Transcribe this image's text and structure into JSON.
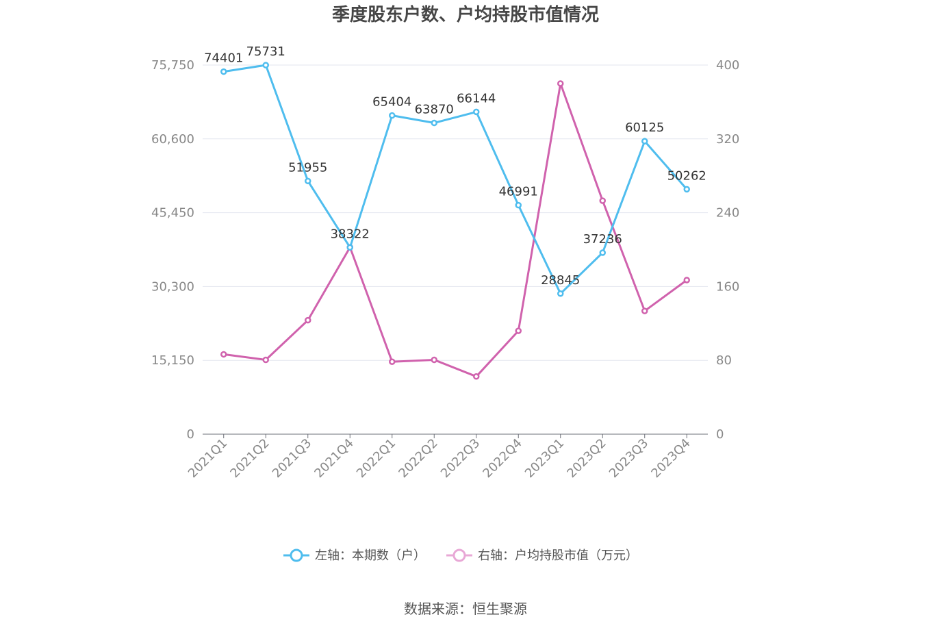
{
  "chart_data": {
    "type": "line",
    "title": "季度股东户数、户均持股市值情况",
    "categories": [
      "2021Q1",
      "2021Q2",
      "2021Q3",
      "2021Q4",
      "2022Q1",
      "2022Q2",
      "2022Q3",
      "2022Q4",
      "2023Q1",
      "2023Q2",
      "2023Q3",
      "2023Q4"
    ],
    "left_axis": {
      "ylim": [
        0,
        75750
      ],
      "ticks": [
        "0",
        "15,150",
        "30,300",
        "45,450",
        "60,600",
        "75,750"
      ]
    },
    "right_axis": {
      "ylim": [
        0,
        400
      ],
      "ticks": [
        "0",
        "80",
        "160",
        "240",
        "320",
        "400"
      ]
    },
    "series": [
      {
        "name": "左轴：本期数（户）",
        "axis": "left",
        "color": "#4fbdee",
        "values": [
          74401,
          75731,
          51955,
          38322,
          65404,
          63870,
          66144,
          46991,
          28845,
          37236,
          60125,
          50262
        ],
        "labels": [
          "74401",
          "75731",
          "51955",
          "38322",
          "65404",
          "63870",
          "66144",
          "46991",
          "28845",
          "37236",
          "60125",
          "50262"
        ]
      },
      {
        "name": "右轴：户均持股市值（万元）",
        "axis": "right",
        "color": "#d062ad",
        "values": [
          86.5,
          80.5,
          123.5,
          202.5,
          78.5,
          80.5,
          62.5,
          112.0,
          380.0,
          253.0,
          133.5,
          167.0
        ]
      }
    ],
    "grid": true,
    "legend_position": "bottom"
  },
  "source": "数据来源：恒生聚源"
}
